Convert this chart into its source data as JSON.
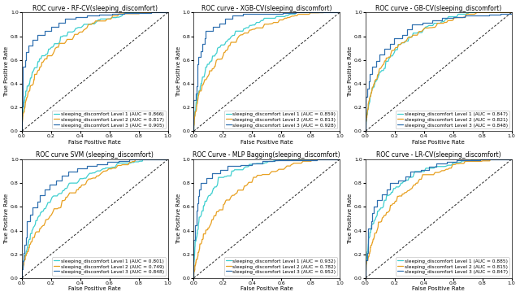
{
  "subplots": [
    {
      "title": "ROC curve - RF-CV(sleeping_discomfort)",
      "legend": [
        "sleeping_discomfort Level 1 (AUC = 0.866)",
        "sleeping_discomfort Level 2 (AUC = 0.817)",
        "sleeping_discomfort Level 3 (AUC = 0.905)"
      ],
      "auc": [
        0.866,
        0.817,
        0.905
      ]
    },
    {
      "title": "ROC curve - XGB-CV(sleeping_discomfort)",
      "legend": [
        "sleeping_discomfort Level 1 (AUC = 0.859)",
        "sleeping_discomfort Level 2 (AUC = 0.813)",
        "sleeping_discomfort Level 3 (AUC = 0.928)"
      ],
      "auc": [
        0.859,
        0.813,
        0.928
      ]
    },
    {
      "title": "ROC curve - GB-CV(sleeping_discomfort)",
      "legend": [
        "sleeping_discomfort Level 1 (AUC = 0.847)",
        "sleeping_discomfort Level 2 (AUC = 0.821)",
        "sleeping_discomfort Level 3 (AUC = 0.848)"
      ],
      "auc": [
        0.847,
        0.821,
        0.848
      ]
    },
    {
      "title": "ROC curve SVM (sleeping_discomfort)",
      "legend": [
        "sleeping_discomfort Level 1 (AUC = 0.801)",
        "sleeping_discomfort Level 2 (AUC = 0.749)",
        "sleeping_discomfort Level 3 (AUC = 0.848)"
      ],
      "auc": [
        0.801,
        0.749,
        0.848
      ]
    },
    {
      "title": "ROC Curve - MLP Bagging(sleeping_discomfort)",
      "legend": [
        "sleeping_discomfort Level 1 (AUC = 0.932)",
        "sleeping_discomfort Level 2 (AUC = 0.782)",
        "sleeping_discomfort Level 3 (AUC = 0.952)"
      ],
      "auc": [
        0.932,
        0.782,
        0.952
      ]
    },
    {
      "title": "ROC curve - LR-CV(sleeping_discomfort)",
      "legend": [
        "sleeping_discomfort Level 1 (AUC = 0.885)",
        "sleeping_discomfort Level 2 (AUC = 0.815)",
        "sleeping_discomfort Level 3 (AUC = 0.847)"
      ],
      "auc": [
        0.885,
        0.815,
        0.847
      ]
    }
  ],
  "colors": [
    "#3ECFCF",
    "#E8A020",
    "#3070B0"
  ],
  "xlabel": "False Positive Rate",
  "ylabel": "True Positive Rate",
  "diagonal_color": "#222222",
  "background": "#ffffff",
  "legend_fontsize": 4.2,
  "title_fontsize": 5.5,
  "label_fontsize": 5.0,
  "tick_fontsize": 4.5
}
